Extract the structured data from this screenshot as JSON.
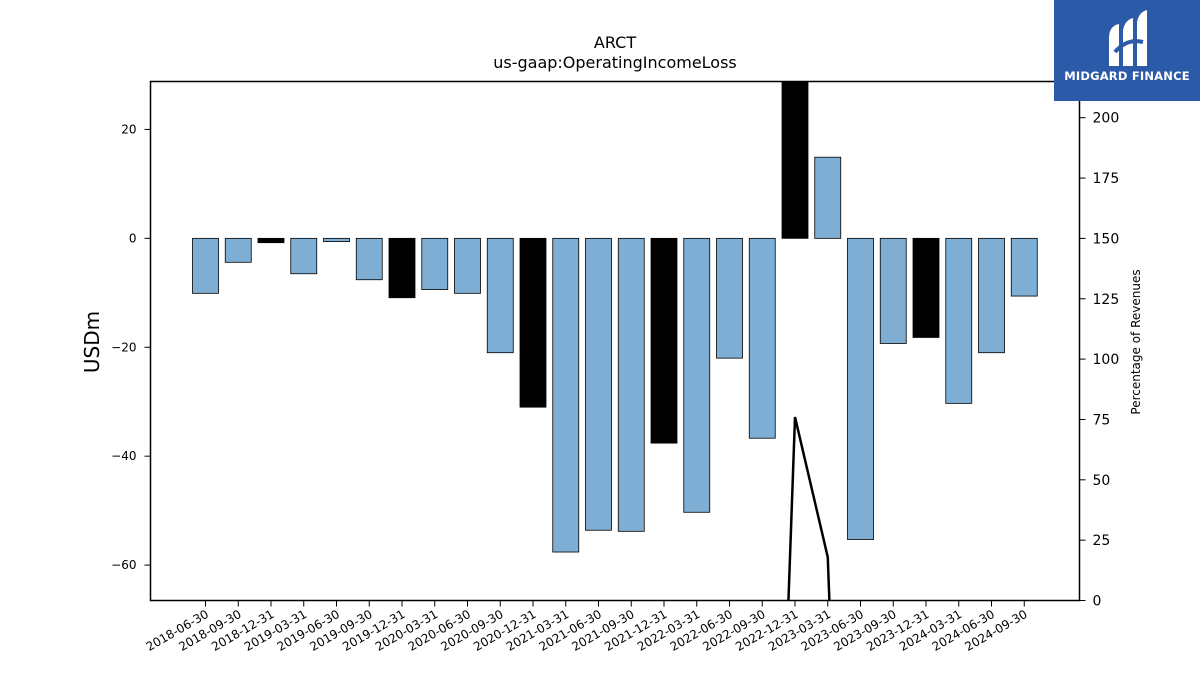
{
  "chart_data": {
    "type": "bar",
    "title": "ARCT",
    "subtitle": "us-gaap:OperatingIncomeLoss",
    "ylabel": "USDm",
    "y2label": "Percentage of Revenues",
    "ylim": [
      -66.5,
      28.8
    ],
    "y2lim": [
      0,
      215
    ],
    "yticks": [
      20,
      0,
      -20,
      -40,
      -60
    ],
    "y2ticks": [
      0,
      25,
      50,
      75,
      100,
      125,
      150,
      175,
      200
    ],
    "categories": [
      "2018-06-30",
      "2018-09-30",
      "2018-12-31",
      "2019-03-31",
      "2019-06-30",
      "2019-09-30",
      "2019-12-31",
      "2020-03-31",
      "2020-06-30",
      "2020-09-30",
      "2020-12-31",
      "2021-03-31",
      "2021-06-30",
      "2021-09-30",
      "2021-12-31",
      "2022-03-31",
      "2022-06-30",
      "2022-09-30",
      "2022-12-31",
      "2023-03-31",
      "2023-06-30",
      "2023-09-30",
      "2023-12-31",
      "2024-03-31",
      "2024-06-30",
      "2024-09-30"
    ],
    "values": [
      -10.1,
      -4.4,
      -0.8,
      -6.5,
      -0.6,
      -7.6,
      -10.9,
      -9.4,
      -10.1,
      -21.0,
      -31.0,
      -57.6,
      -53.6,
      -53.8,
      -37.6,
      -50.3,
      -22.0,
      -36.7,
      28.8,
      14.9,
      -55.3,
      -19.3,
      -18.2,
      -30.3,
      -21.0,
      -10.6
    ],
    "highlight": [
      false,
      false,
      true,
      false,
      false,
      false,
      true,
      false,
      false,
      false,
      true,
      false,
      false,
      false,
      true,
      false,
      false,
      false,
      true,
      false,
      false,
      false,
      true,
      false,
      false,
      false
    ],
    "line_series": {
      "x_index": [
        17.8,
        18.0,
        19.0,
        19.05
      ],
      "values": [
        0,
        76,
        18,
        0
      ]
    },
    "colors": {
      "bar": "#7eaed3",
      "highlight": "#000000",
      "line": "#000000"
    }
  },
  "logo": {
    "text": "MIDGARD FINANCE"
  }
}
